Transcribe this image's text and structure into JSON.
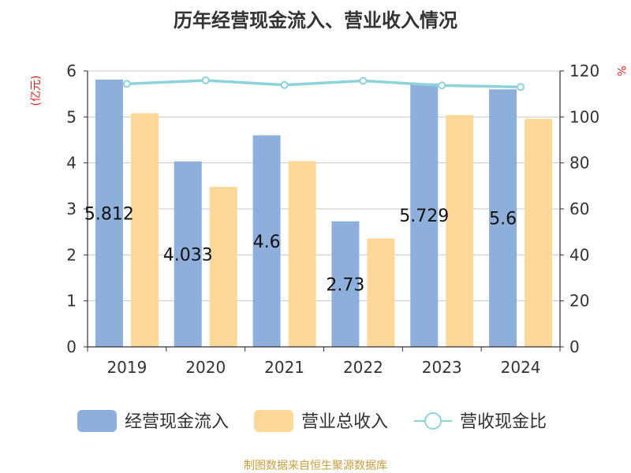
{
  "chart_data": {
    "type": "bar",
    "title": "历年经营现金流入、营业收入情况",
    "y_left_label": "(亿元)",
    "y_right_label": "%",
    "categories": [
      "2019",
      "2020",
      "2021",
      "2022",
      "2023",
      "2024"
    ],
    "y_left_range": [
      0,
      6
    ],
    "y_left_ticks": [
      "0",
      "1",
      "2",
      "3",
      "4",
      "5",
      "6"
    ],
    "y_right_range": [
      0,
      120
    ],
    "y_right_ticks": [
      "0",
      "20",
      "40",
      "60",
      "80",
      "100",
      "120"
    ],
    "grid": true,
    "legend_position": "bottom",
    "series": [
      {
        "name": "经营现金流入",
        "type": "bar",
        "axis": "left",
        "color": "#8eaedb",
        "values": [
          5.812,
          4.033,
          4.6,
          2.73,
          5.729,
          5.6
        ],
        "labels": [
          "5.812",
          "4.033",
          "4.6",
          "2.73",
          "5.729",
          "5.6"
        ]
      },
      {
        "name": "营业总收入",
        "type": "bar",
        "axis": "left",
        "color": "#fdd898",
        "values": [
          5.08,
          3.48,
          4.04,
          2.36,
          5.04,
          4.96
        ]
      },
      {
        "name": "营收现金比",
        "type": "line",
        "axis": "right",
        "color": "#8dd3d9",
        "values": [
          114.4,
          115.9,
          113.9,
          115.7,
          113.7,
          113.0
        ]
      }
    ],
    "source": "制图数据来自恒生聚源数据库"
  }
}
